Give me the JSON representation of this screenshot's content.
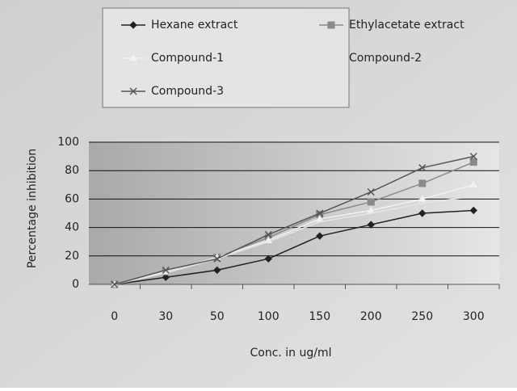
{
  "chart_data": {
    "type": "line",
    "y_label": "Percentage inhibition",
    "x_label": "Conc. in ug/ml",
    "categories": [
      "0",
      "30",
      "50",
      "100",
      "150",
      "200",
      "250",
      "300"
    ],
    "series": [
      {
        "name": "Hexane extract",
        "color": "#222222",
        "marker": "diamond",
        "values": [
          0,
          5,
          10,
          18,
          34,
          42,
          50,
          52
        ]
      },
      {
        "name": "Ethylacetate extract",
        "color": "#8a8a8a",
        "marker": "square",
        "values": [
          0,
          9,
          19,
          33,
          49,
          58,
          71,
          86
        ]
      },
      {
        "name": "Compound-1",
        "color": "#f2f2f2",
        "marker": "triangle",
        "values": [
          0,
          9,
          19,
          31,
          46,
          52,
          60,
          70
        ]
      },
      {
        "name": "Compound-2",
        "color": "#e6e6e6",
        "marker": "none",
        "values": [
          0,
          8,
          18,
          30,
          44,
          50,
          57,
          62
        ]
      },
      {
        "name": "Compound-3",
        "color": "#555555",
        "marker": "x",
        "values": [
          0,
          10,
          18,
          35,
          50,
          65,
          82,
          90
        ]
      }
    ],
    "ylim": [
      0,
      100
    ],
    "yticks": [
      0,
      20,
      40,
      60,
      80,
      100
    ],
    "grid": true
  }
}
